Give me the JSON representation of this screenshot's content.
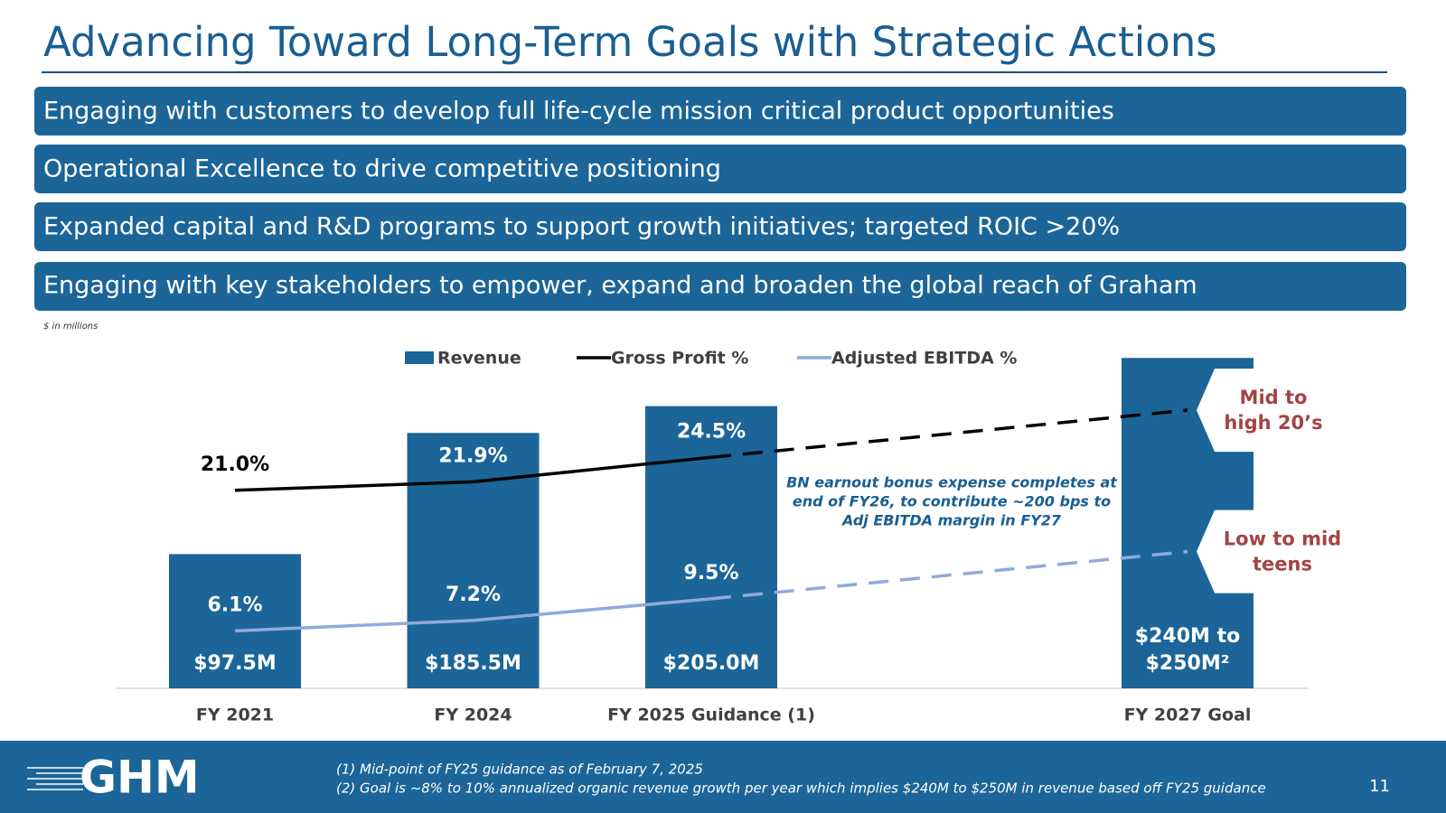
{
  "header": {
    "title": "Advancing Toward Long-Term Goals with Strategic Actions"
  },
  "banners": [
    "Engaging with customers to develop full life-cycle mission critical product opportunities",
    "Operational Excellence to drive competitive positioning",
    "Expanded capital and R&D programs to support growth initiatives; targeted ROIC >20%",
    "Engaging with key stakeholders to empower, expand and broaden the global reach of Graham"
  ],
  "units_note": "$ in millions",
  "chart_data": {
    "type": "bar",
    "categories": [
      "FY 2021",
      "FY 2024",
      "FY 2025 Guidance (1)",
      "FY 2027 Goal"
    ],
    "ylim": [
      0,
      250
    ],
    "y2lim": [
      0,
      36.5
    ],
    "dash_from_index": 2,
    "series": [
      {
        "name": "Revenue",
        "color": "#1b6598",
        "values": [
          97.5,
          185.5,
          205.0,
          240
        ],
        "value_labels": [
          "$97.5M",
          "$185.5M",
          "$205.0M",
          "$240M to $250M²"
        ]
      },
      {
        "name": "Gross Profit %",
        "type": "line",
        "axis": "y2",
        "color": "#000000",
        "values": [
          21.0,
          21.9,
          24.5,
          29.5
        ],
        "value_labels": [
          "21.0%",
          "21.9%",
          "24.5%",
          null
        ]
      },
      {
        "name": "Adjusted EBITDA %",
        "type": "line",
        "axis": "y2",
        "color": "#8faadc",
        "values": [
          6.1,
          7.2,
          9.5,
          14.5
        ],
        "value_labels": [
          "6.1%",
          "7.2%",
          "9.5%",
          null
        ]
      }
    ],
    "annotations": [
      {
        "series": 1,
        "lines": [
          "Mid to",
          "high 20’s"
        ]
      },
      {
        "series": 2,
        "lines": [
          "Low to mid",
          "teens"
        ]
      }
    ],
    "note": [
      "BN earnout bonus expense completes at",
      "end of FY26, to contribute ~200 bps to",
      "Adj EBITDA margin in FY27"
    ]
  },
  "footer": {
    "logo": "GHM",
    "footnotes": [
      "(1)  Mid-point of FY25 guidance as of February 7, 2025",
      "(2)  Goal is ~8% to 10% annualized organic revenue growth per year which implies $240M to $250M in revenue based off FY25 guidance"
    ],
    "page_number": "11"
  }
}
